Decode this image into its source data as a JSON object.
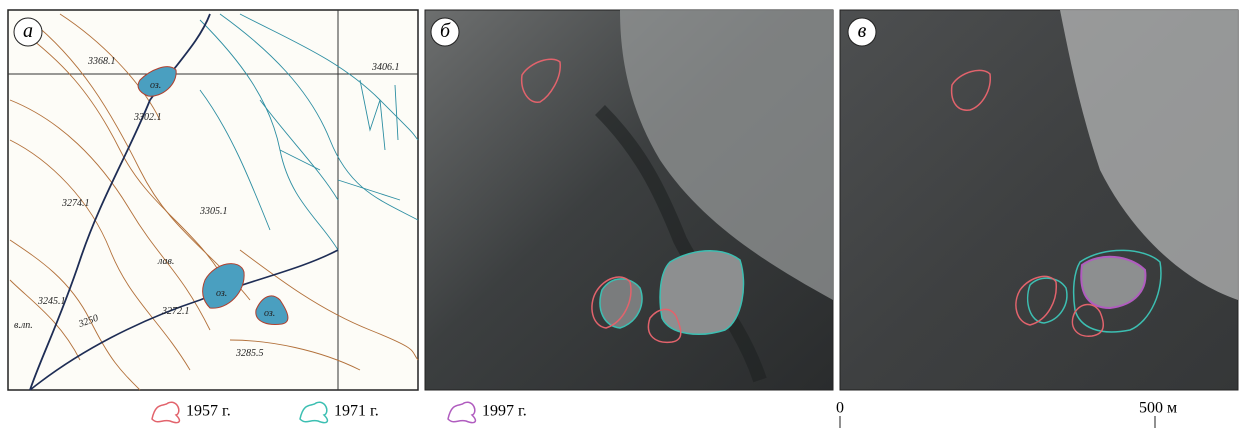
{
  "panels": [
    {
      "label": "а",
      "labels": [
        "3368.1",
        "3406.1",
        "оз.",
        "3302.1",
        "3274.1",
        "3305.1",
        "лав.",
        "3245.1",
        "3250",
        "в.лп.",
        "3272.1",
        "оз.",
        "оз.",
        "3285.5"
      ]
    },
    {
      "label": "б"
    },
    {
      "label": "в"
    }
  ],
  "legend": [
    {
      "label": "1957 г.",
      "color": "#e2636c"
    },
    {
      "label": "1971 г.",
      "color": "#3cbfb2"
    },
    {
      "label": "1997 г.",
      "color": "#b05cbf"
    }
  ],
  "scale": {
    "start": "0",
    "end": "500 м"
  }
}
